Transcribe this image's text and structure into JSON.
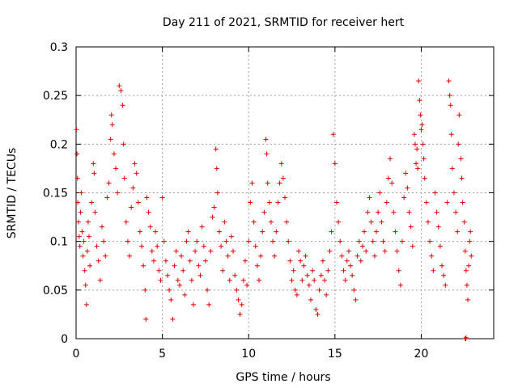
{
  "chart_data": {
    "type": "scatter",
    "title": "Day 211 of 2021, SRMTID for receiver hert",
    "xlabel": "GPS time / hours",
    "ylabel": "SRMTID / TECUs",
    "xlim": [
      0,
      24.2
    ],
    "ylim": [
      0,
      0.3
    ],
    "xticks": [
      0,
      5,
      10,
      15,
      20
    ],
    "yticks": [
      0,
      0.05,
      0.1,
      0.15,
      0.2,
      0.25,
      0.3
    ],
    "xtick_labels": [
      "0",
      "5",
      "10",
      "15",
      "20"
    ],
    "ytick_labels": [
      "0",
      "0.05",
      "0.1",
      "0.15",
      "0.2",
      "0.25",
      "0.3"
    ],
    "grid": true,
    "marker": "+",
    "marker_color": "#e00000",
    "series": [
      {
        "name": "SRMTID",
        "points": [
          [
            0.02,
            0.215
          ],
          [
            0.05,
            0.19
          ],
          [
            0.08,
            0.165
          ],
          [
            0.1,
            0.14
          ],
          [
            0.14,
            0.12
          ],
          [
            0.18,
            0.105
          ],
          [
            0.22,
            0.095
          ],
          [
            0.26,
            0.13
          ],
          [
            0.3,
            0.15
          ],
          [
            0.35,
            0.11
          ],
          [
            0.4,
            0.085
          ],
          [
            0.45,
            0.1
          ],
          [
            0.5,
            0.07
          ],
          [
            0.55,
            0.055
          ],
          [
            0.6,
            0.035
          ],
          [
            0.65,
            0.09
          ],
          [
            0.7,
            0.12
          ],
          [
            0.75,
            0.105
          ],
          [
            0.8,
            0.075
          ],
          [
            0.9,
            0.14
          ],
          [
            1.0,
            0.18
          ],
          [
            1.05,
            0.17
          ],
          [
            1.1,
            0.13
          ],
          [
            1.2,
            0.095
          ],
          [
            1.3,
            0.08
          ],
          [
            1.4,
            0.06
          ],
          [
            1.5,
            0.115
          ],
          [
            1.6,
            0.1
          ],
          [
            1.7,
            0.085
          ],
          [
            1.8,
            0.145
          ],
          [
            1.9,
            0.16
          ],
          [
            2.0,
            0.205
          ],
          [
            2.05,
            0.23
          ],
          [
            2.1,
            0.22
          ],
          [
            2.2,
            0.19
          ],
          [
            2.3,
            0.175
          ],
          [
            2.4,
            0.15
          ],
          [
            2.5,
            0.26
          ],
          [
            2.6,
            0.255
          ],
          [
            2.7,
            0.24
          ],
          [
            2.75,
            0.2
          ],
          [
            2.8,
            0.165
          ],
          [
            2.9,
            0.12
          ],
          [
            3.0,
            0.1
          ],
          [
            3.1,
            0.085
          ],
          [
            3.2,
            0.135
          ],
          [
            3.3,
            0.155
          ],
          [
            3.4,
            0.18
          ],
          [
            3.5,
            0.17
          ],
          [
            3.6,
            0.14
          ],
          [
            3.7,
            0.11
          ],
          [
            3.8,
            0.095
          ],
          [
            3.9,
            0.075
          ],
          [
            4.0,
            0.05
          ],
          [
            4.05,
            0.02
          ],
          [
            4.1,
            0.145
          ],
          [
            4.2,
            0.13
          ],
          [
            4.3,
            0.115
          ],
          [
            4.4,
            0.09
          ],
          [
            4.5,
            0.08
          ],
          [
            4.6,
            0.11
          ],
          [
            4.7,
            0.095
          ],
          [
            4.8,
            0.07
          ],
          [
            4.9,
            0.06
          ],
          [
            5.0,
            0.145
          ],
          [
            5.1,
            0.1
          ],
          [
            5.2,
            0.08
          ],
          [
            5.3,
            0.065
          ],
          [
            5.4,
            0.05
          ],
          [
            5.5,
            0.04
          ],
          [
            5.6,
            0.02
          ],
          [
            5.7,
            0.075
          ],
          [
            5.8,
            0.09
          ],
          [
            5.9,
            0.06
          ],
          [
            6.0,
            0.055
          ],
          [
            6.1,
            0.085
          ],
          [
            6.2,
            0.07
          ],
          [
            6.3,
            0.045
          ],
          [
            6.4,
            0.1
          ],
          [
            6.5,
            0.11
          ],
          [
            6.6,
            0.08
          ],
          [
            6.7,
            0.06
          ],
          [
            6.8,
            0.035
          ],
          [
            6.9,
            0.09
          ],
          [
            7.0,
            0.1
          ],
          [
            7.1,
            0.075
          ],
          [
            7.2,
            0.065
          ],
          [
            7.3,
            0.115
          ],
          [
            7.4,
            0.095
          ],
          [
            7.5,
            0.08
          ],
          [
            7.6,
            0.05
          ],
          [
            7.7,
            0.035
          ],
          [
            7.8,
            0.09
          ],
          [
            7.9,
            0.125
          ],
          [
            8.0,
            0.135
          ],
          [
            8.1,
            0.195
          ],
          [
            8.15,
            0.175
          ],
          [
            8.2,
            0.15
          ],
          [
            8.3,
            0.11
          ],
          [
            8.4,
            0.095
          ],
          [
            8.5,
            0.07
          ],
          [
            8.6,
            0.12
          ],
          [
            8.7,
            0.1
          ],
          [
            8.8,
            0.085
          ],
          [
            8.9,
            0.06
          ],
          [
            9.0,
            0.105
          ],
          [
            9.1,
            0.09
          ],
          [
            9.2,
            0.065
          ],
          [
            9.3,
            0.05
          ],
          [
            9.4,
            0.04
          ],
          [
            9.5,
            0.025
          ],
          [
            9.6,
            0.035
          ],
          [
            9.7,
            0.06
          ],
          [
            9.8,
            0.08
          ],
          [
            9.9,
            0.055
          ],
          [
            10.0,
            0.1
          ],
          [
            10.1,
            0.14
          ],
          [
            10.2,
            0.16
          ],
          [
            10.3,
            0.12
          ],
          [
            10.4,
            0.095
          ],
          [
            10.5,
            0.075
          ],
          [
            10.6,
            0.06
          ],
          [
            10.7,
            0.085
          ],
          [
            10.8,
            0.11
          ],
          [
            10.9,
            0.13
          ],
          [
            11.0,
            0.205
          ],
          [
            11.05,
            0.19
          ],
          [
            11.1,
            0.16
          ],
          [
            11.2,
            0.14
          ],
          [
            11.3,
            0.12
          ],
          [
            11.4,
            0.1
          ],
          [
            11.5,
            0.085
          ],
          [
            11.6,
            0.11
          ],
          [
            11.7,
            0.14
          ],
          [
            11.8,
            0.16
          ],
          [
            11.9,
            0.18
          ],
          [
            12.0,
            0.165
          ],
          [
            12.1,
            0.145
          ],
          [
            12.2,
            0.12
          ],
          [
            12.3,
            0.1
          ],
          [
            12.4,
            0.08
          ],
          [
            12.5,
            0.06
          ],
          [
            12.6,
            0.07
          ],
          [
            12.7,
            0.05
          ],
          [
            12.8,
            0.045
          ],
          [
            12.9,
            0.09
          ],
          [
            13.0,
            0.08
          ],
          [
            13.1,
            0.06
          ],
          [
            13.2,
            0.075
          ],
          [
            13.3,
            0.085
          ],
          [
            13.4,
            0.065
          ],
          [
            13.5,
            0.055
          ],
          [
            13.6,
            0.04
          ],
          [
            13.7,
            0.07
          ],
          [
            13.8,
            0.06
          ],
          [
            13.9,
            0.03
          ],
          [
            14.0,
            0.025
          ],
          [
            14.1,
            0.05
          ],
          [
            14.2,
            0.065
          ],
          [
            14.3,
            0.08
          ],
          [
            14.4,
            0.06
          ],
          [
            14.5,
            0.045
          ],
          [
            14.6,
            0.07
          ],
          [
            14.7,
            0.09
          ],
          [
            14.8,
            0.11
          ],
          [
            14.9,
            0.21
          ],
          [
            15.0,
            0.18
          ],
          [
            15.1,
            0.14
          ],
          [
            15.2,
            0.12
          ],
          [
            15.3,
            0.1
          ],
          [
            15.4,
            0.085
          ],
          [
            15.5,
            0.07
          ],
          [
            15.6,
            0.06
          ],
          [
            15.7,
            0.08
          ],
          [
            15.8,
            0.09
          ],
          [
            15.9,
            0.075
          ],
          [
            16.0,
            0.065
          ],
          [
            16.1,
            0.05
          ],
          [
            16.2,
            0.04
          ],
          [
            16.3,
            0.085
          ],
          [
            16.4,
            0.1
          ],
          [
            16.5,
            0.08
          ],
          [
            16.6,
            0.095
          ],
          [
            16.7,
            0.11
          ],
          [
            16.8,
            0.09
          ],
          [
            16.9,
            0.13
          ],
          [
            17.0,
            0.145
          ],
          [
            17.1,
            0.12
          ],
          [
            17.2,
            0.1
          ],
          [
            17.3,
            0.085
          ],
          [
            17.4,
            0.11
          ],
          [
            17.5,
            0.13
          ],
          [
            17.6,
            0.15
          ],
          [
            17.7,
            0.12
          ],
          [
            17.8,
            0.1
          ],
          [
            17.9,
            0.09
          ],
          [
            18.0,
            0.14
          ],
          [
            18.1,
            0.165
          ],
          [
            18.2,
            0.185
          ],
          [
            18.3,
            0.16
          ],
          [
            18.4,
            0.13
          ],
          [
            18.5,
            0.11
          ],
          [
            18.6,
            0.09
          ],
          [
            18.7,
            0.07
          ],
          [
            18.8,
            0.055
          ],
          [
            18.9,
            0.1
          ],
          [
            19.0,
            0.145
          ],
          [
            19.1,
            0.17
          ],
          [
            19.2,
            0.155
          ],
          [
            19.3,
            0.13
          ],
          [
            19.4,
            0.115
          ],
          [
            19.5,
            0.095
          ],
          [
            19.6,
            0.21
          ],
          [
            19.65,
            0.2
          ],
          [
            19.7,
            0.18
          ],
          [
            19.75,
            0.195
          ],
          [
            19.8,
            0.175
          ],
          [
            19.85,
            0.265
          ],
          [
            19.9,
            0.245
          ],
          [
            19.95,
            0.23
          ],
          [
            20.0,
            0.215
          ],
          [
            20.05,
            0.22
          ],
          [
            20.1,
            0.2
          ],
          [
            20.15,
            0.185
          ],
          [
            20.2,
            0.165
          ],
          [
            20.3,
            0.14
          ],
          [
            20.4,
            0.12
          ],
          [
            20.5,
            0.1
          ],
          [
            20.6,
            0.085
          ],
          [
            20.7,
            0.07
          ],
          [
            20.8,
            0.15
          ],
          [
            20.9,
            0.13
          ],
          [
            21.0,
            0.115
          ],
          [
            21.1,
            0.095
          ],
          [
            21.2,
            0.075
          ],
          [
            21.3,
            0.065
          ],
          [
            21.4,
            0.055
          ],
          [
            21.5,
            0.14
          ],
          [
            21.6,
            0.265
          ],
          [
            21.65,
            0.25
          ],
          [
            21.7,
            0.24
          ],
          [
            21.75,
            0.21
          ],
          [
            21.8,
            0.175
          ],
          [
            21.9,
            0.15
          ],
          [
            22.0,
            0.13
          ],
          [
            22.1,
            0.11
          ],
          [
            22.15,
            0.2
          ],
          [
            22.2,
            0.23
          ],
          [
            22.3,
            0.185
          ],
          [
            22.35,
            0.165
          ],
          [
            22.4,
            0.14
          ],
          [
            22.5,
            0.12
          ],
          [
            22.55,
            0.09
          ],
          [
            22.6,
            0.07
          ],
          [
            22.65,
            0.055
          ],
          [
            22.7,
            0.04
          ],
          [
            22.75,
            0.075
          ],
          [
            22.8,
            0.1
          ],
          [
            22.85,
            0.11
          ],
          [
            22.9,
            0.085
          ],
          [
            22.55,
            0.0
          ],
          [
            22.6,
            0.001
          ],
          [
            22.58,
            0.0
          ]
        ]
      }
    ]
  }
}
